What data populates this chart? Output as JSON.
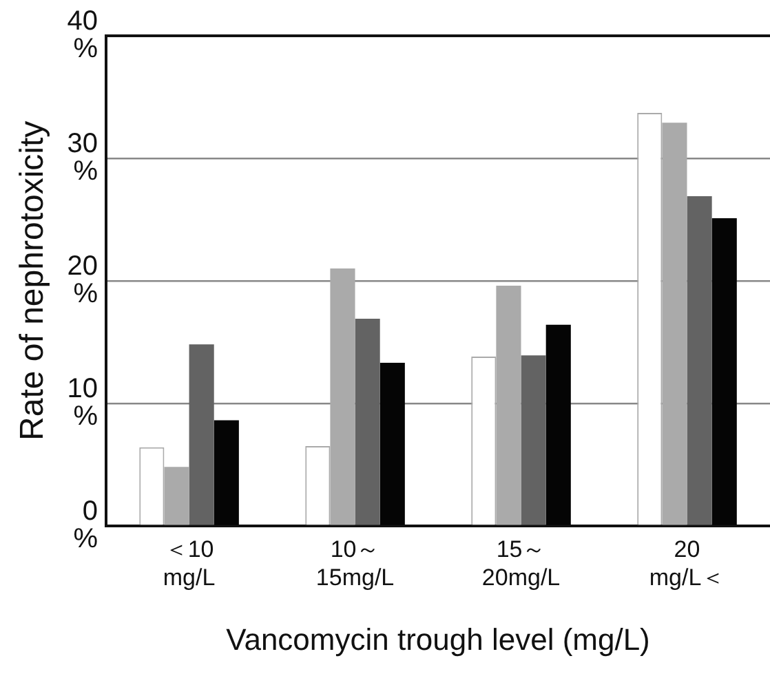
{
  "chart_data": {
    "type": "bar",
    "xlabel": "Vancomycin trough level (mg/L)",
    "ylabel": "Rate of nephrotoxicity",
    "categories": [
      "＜10\nmg/L",
      "10～\n15mg/L",
      "15～\n20mg/L",
      "20\nmg/L＜"
    ],
    "series": [
      {
        "color": "#ffffff",
        "values": [
          6.4,
          6.5,
          13.8,
          33.7
        ]
      },
      {
        "color": "#aaaaaa",
        "values": [
          4.8,
          21.0,
          19.6,
          32.9
        ]
      },
      {
        "color": "#636363",
        "values": [
          14.8,
          16.9,
          13.9,
          26.9
        ]
      },
      {
        "color": "#050505",
        "values": [
          8.6,
          13.3,
          16.4,
          25.1
        ]
      }
    ],
    "ylim": [
      0,
      40
    ],
    "yticks": [
      {
        "value": 0,
        "label": "0\n%"
      },
      {
        "value": 10,
        "label": "10\n%"
      },
      {
        "value": 20,
        "label": "20\n%"
      },
      {
        "value": 30,
        "label": "30\n%"
      },
      {
        "value": 40,
        "label": "40\n%"
      }
    ],
    "grid": "y",
    "legend": false
  }
}
